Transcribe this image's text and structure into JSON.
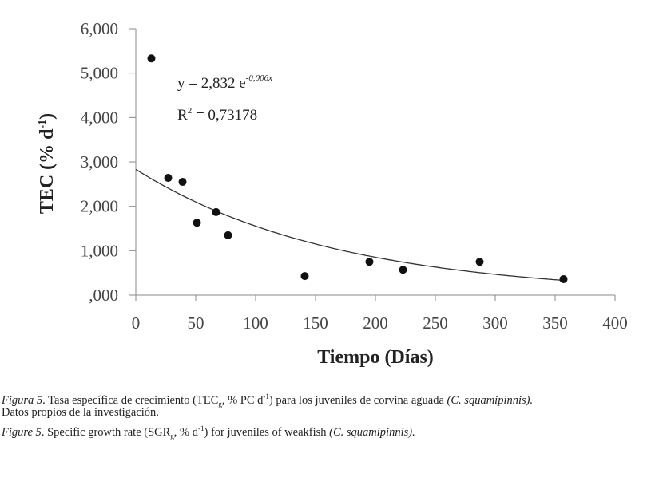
{
  "chart_data": {
    "type": "scatter",
    "title": "",
    "xlabel": "Tiempo (Días)",
    "ylabel_main": "TEC (% d",
    "ylabel_sup": "-1",
    "ylabel_close": ")",
    "xlim": [
      0,
      400
    ],
    "ylim": [
      0,
      6
    ],
    "x_ticks": [
      0,
      50,
      100,
      150,
      200,
      250,
      300,
      350,
      400
    ],
    "x_tick_labels": [
      "0",
      "50",
      "100",
      "150",
      "200",
      "250",
      "300",
      "350",
      "400"
    ],
    "y_ticks": [
      0,
      1,
      2,
      3,
      4,
      5,
      6
    ],
    "y_tick_labels": [
      ",000",
      "1,000",
      "2,000",
      "3,000",
      "4,000",
      "5,000",
      "6,000"
    ],
    "grid": false,
    "points": [
      {
        "x": 13,
        "y": 5.33
      },
      {
        "x": 27,
        "y": 2.64
      },
      {
        "x": 39,
        "y": 2.55
      },
      {
        "x": 51,
        "y": 1.63
      },
      {
        "x": 67,
        "y": 1.87
      },
      {
        "x": 77,
        "y": 1.35
      },
      {
        "x": 141,
        "y": 0.43
      },
      {
        "x": 195,
        "y": 0.75
      },
      {
        "x": 223,
        "y": 0.57
      },
      {
        "x": 287,
        "y": 0.75
      },
      {
        "x": 357,
        "y": 0.36
      }
    ],
    "trendline": {
      "type": "exponential",
      "a": 2.832,
      "b": -0.006,
      "x_range": [
        0,
        355
      ],
      "equation_main": "y = 2,832 e",
      "equation_exp": "-0,006x",
      "r2_label": "R",
      "r2_sup": "2",
      "r2_value": " = 0,73178"
    },
    "colors": {
      "points": "#111111",
      "trendline": "#333333",
      "axis": "#888888"
    }
  },
  "caption": {
    "es_label": "Figura 5",
    "es_text_1": ". Tasa específica de crecimiento (TEC",
    "es_sub": "g",
    "es_text_2": ", % PC d",
    "es_sup": "-1",
    "es_text_3": ")  para los juveniles de corvina aguada ",
    "es_species": "(C. squamipinnis).",
    "es_line2": "Datos propios de la investigación.",
    "en_label": "Figure 5",
    "en_text_1": ". Specific growth rate (SGR",
    "en_sub": "g",
    "en_text_2": ", % d",
    "en_sup": "-1",
    "en_text_3": ") for juveniles of weakfish ",
    "en_species": "(C. squamipinnis)."
  }
}
